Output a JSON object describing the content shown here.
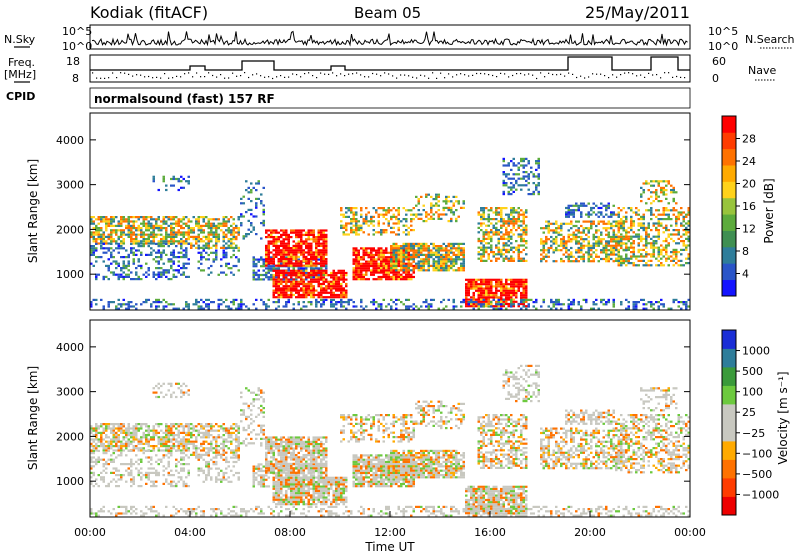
{
  "header": {
    "station": "Kodiak (fitACF)",
    "beam": "Beam 05",
    "date": "25/May/2011"
  },
  "summary": {
    "nsky_label": "N.Sky",
    "nsearch_label": "N.Search",
    "freq_label_line1": "Freq.",
    "freq_label_line2": "[MHz]",
    "nave_label": "Nave",
    "cpid_label": "CPID",
    "cpid_text": "normalsound (fast) 157 RF",
    "n_ticks_left": [
      "10^5",
      "10^0"
    ],
    "n_ticks_right": [
      "10^5",
      "10^0"
    ],
    "freq_ticks": [
      "18",
      "8"
    ],
    "nave_ticks": [
      "60",
      "0"
    ]
  },
  "chart_data": [
    {
      "type": "heatmap",
      "name": "power-panel",
      "ylabel": "Slant Range [km]",
      "colorbar_label": "Power [dB]",
      "colorbar_ticks": [
        "28",
        "24",
        "20",
        "16",
        "12",
        "8",
        "4"
      ],
      "colors": [
        "#1414ff",
        "#2a55c8",
        "#2e7d9a",
        "#3f8f52",
        "#5cab3c",
        "#98c43c",
        "#ffd21a",
        "#ffaa00",
        "#ff7200",
        "#ff3c00",
        "#ff0000"
      ],
      "yticks": [
        "4000",
        "3000",
        "2000",
        "1000"
      ],
      "ylim": [
        200,
        4600
      ],
      "xlim": [
        0,
        24
      ]
    },
    {
      "type": "heatmap",
      "name": "velocity-panel",
      "xlabel": "Time UT",
      "ylabel": "Slant Range [km]",
      "colorbar_label": "Velocity [m s⁻¹]",
      "colorbar_ticks": [
        "1000",
        "500",
        "100",
        "25",
        "−25",
        "−100",
        "−500",
        "−1000"
      ],
      "colors": [
        "#1a2ed6",
        "#2e7d9a",
        "#3a9a3a",
        "#6cc93e",
        "#c8c8c0",
        "#c8c8c0",
        "#ffaa00",
        "#ff7200",
        "#ff3c00",
        "#ee0000"
      ],
      "yticks": [
        "4000",
        "3000",
        "2000",
        "1000"
      ],
      "xticks": [
        "00:00",
        "04:00",
        "08:00",
        "12:00",
        "16:00",
        "20:00",
        "00:00"
      ],
      "ylim": [
        200,
        4600
      ],
      "xlim": [
        0,
        24
      ]
    }
  ]
}
